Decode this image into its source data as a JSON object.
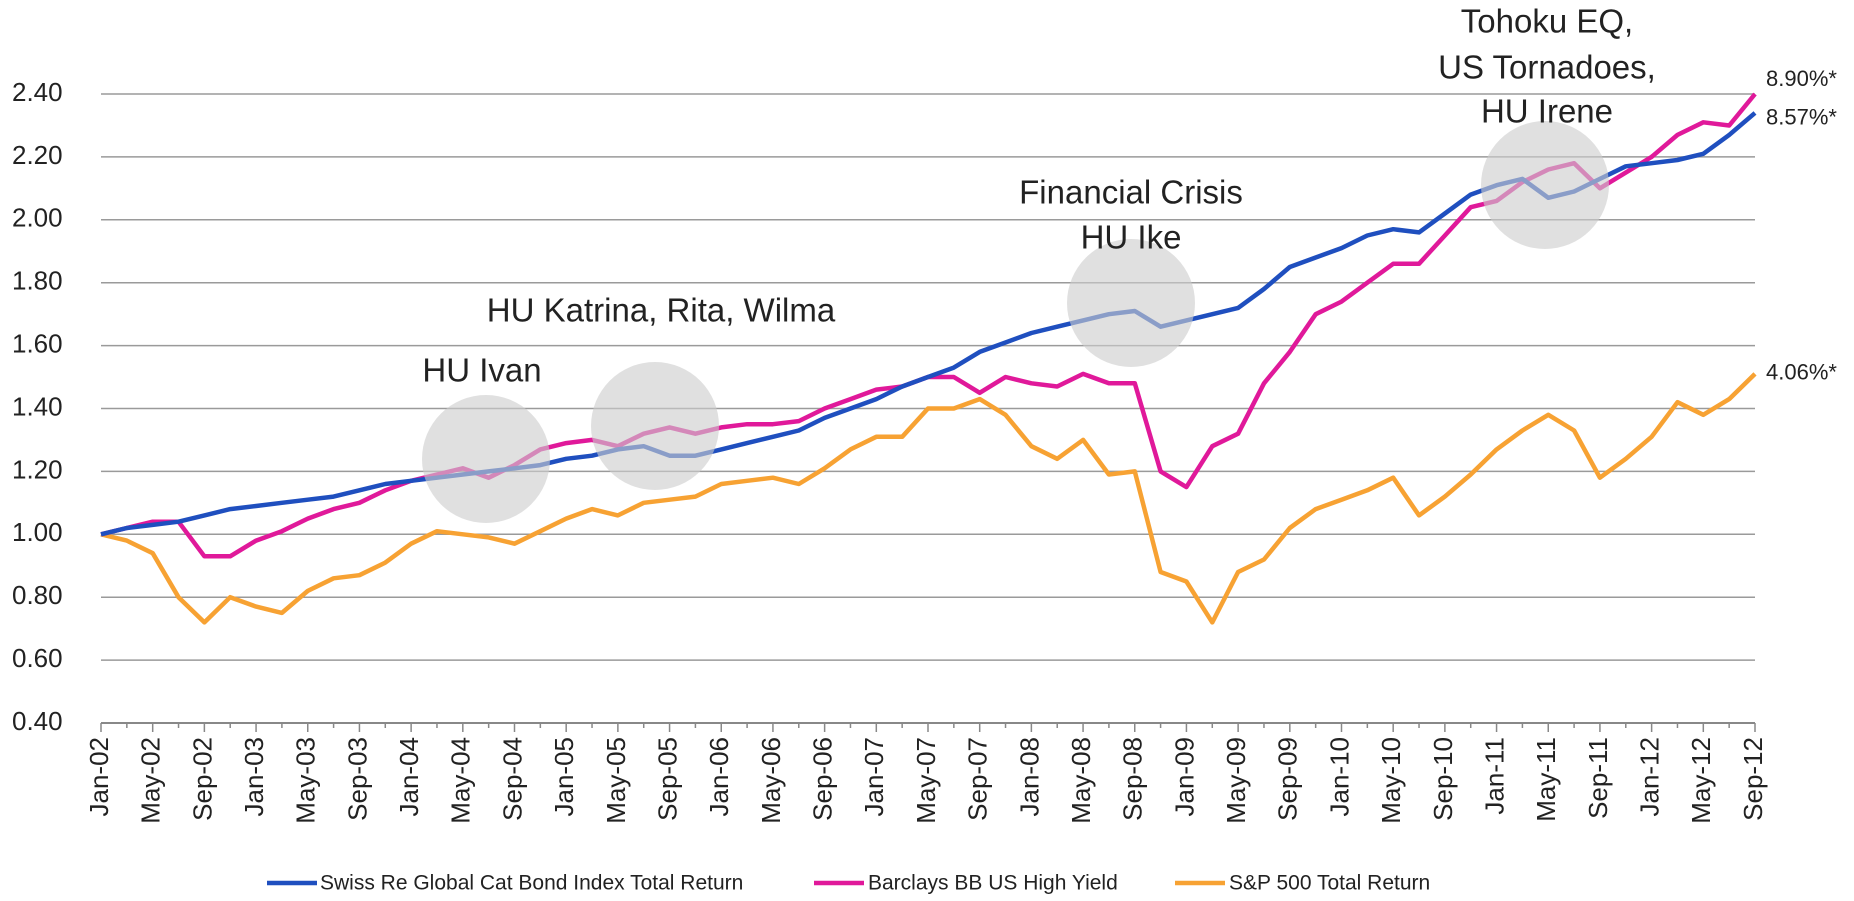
{
  "chart_data": {
    "type": "line",
    "categories": [
      "Jan-02",
      null,
      "May-02",
      null,
      "Sep-02",
      null,
      "Jan-03",
      null,
      "May-03",
      null,
      "Sep-03",
      null,
      "Jan-04",
      null,
      "May-04",
      null,
      "Sep-04",
      null,
      "Jan-05",
      null,
      "May-05",
      null,
      "Sep-05",
      null,
      "Jan-06",
      null,
      "May-06",
      null,
      "Sep-06",
      null,
      "Jan-07",
      null,
      "May-07",
      null,
      "Sep-07",
      null,
      "Jan-08",
      null,
      "May-08",
      null,
      "Sep-08",
      null,
      "Jan-09",
      null,
      "May-09",
      null,
      "Sep-09",
      null,
      "Jan-10",
      null,
      "May-10",
      null,
      "Sep-10",
      null,
      "Jan-11",
      null,
      "May-11",
      null,
      "Sep-11",
      null,
      "Jan-12",
      null,
      "May-12",
      null,
      "Sep-12"
    ],
    "series": [
      {
        "name": "Swiss Re Global Cat Bond Index Total Return",
        "color": "#1f4fbf",
        "label": "8.57%*",
        "values": [
          1.0,
          1.02,
          1.03,
          1.04,
          1.06,
          1.08,
          1.09,
          1.1,
          1.11,
          1.12,
          1.14,
          1.16,
          1.17,
          1.18,
          1.19,
          1.2,
          1.21,
          1.22,
          1.24,
          1.25,
          1.27,
          1.28,
          1.25,
          1.25,
          1.27,
          1.29,
          1.31,
          1.33,
          1.37,
          1.4,
          1.43,
          1.47,
          1.5,
          1.53,
          1.58,
          1.61,
          1.64,
          1.66,
          1.68,
          1.7,
          1.71,
          1.66,
          1.68,
          1.7,
          1.72,
          1.78,
          1.85,
          1.88,
          1.91,
          1.95,
          1.97,
          1.96,
          2.02,
          2.08,
          2.11,
          2.13,
          2.07,
          2.09,
          2.13,
          2.17,
          2.18,
          2.19,
          2.21,
          2.27,
          2.34
        ]
      },
      {
        "name": "Barclays BB US High Yield",
        "color": "#e0199a",
        "label": "8.90%*",
        "values": [
          1.0,
          1.02,
          1.04,
          1.04,
          0.93,
          0.93,
          0.98,
          1.01,
          1.05,
          1.08,
          1.1,
          1.14,
          1.17,
          1.19,
          1.21,
          1.18,
          1.22,
          1.27,
          1.29,
          1.3,
          1.28,
          1.32,
          1.34,
          1.32,
          1.34,
          1.35,
          1.35,
          1.36,
          1.4,
          1.43,
          1.46,
          1.47,
          1.5,
          1.5,
          1.45,
          1.5,
          1.48,
          1.47,
          1.51,
          1.48,
          1.48,
          1.2,
          1.15,
          1.28,
          1.32,
          1.48,
          1.58,
          1.7,
          1.74,
          1.8,
          1.86,
          1.86,
          1.95,
          2.04,
          2.06,
          2.12,
          2.16,
          2.18,
          2.1,
          2.15,
          2.2,
          2.27,
          2.31,
          2.3,
          2.4
        ]
      },
      {
        "name": "S&P 500 Total Return",
        "color": "#f7a233",
        "label": "4.06%*",
        "values": [
          1.0,
          0.98,
          0.94,
          0.8,
          0.72,
          0.8,
          0.77,
          0.75,
          0.82,
          0.86,
          0.87,
          0.91,
          0.97,
          1.01,
          1.0,
          0.99,
          0.97,
          1.01,
          1.05,
          1.08,
          1.06,
          1.1,
          1.11,
          1.12,
          1.16,
          1.17,
          1.18,
          1.16,
          1.21,
          1.27,
          1.31,
          1.31,
          1.4,
          1.4,
          1.43,
          1.38,
          1.28,
          1.24,
          1.3,
          1.19,
          1.2,
          0.88,
          0.85,
          0.72,
          0.88,
          0.92,
          1.02,
          1.08,
          1.11,
          1.14,
          1.18,
          1.06,
          1.12,
          1.19,
          1.27,
          1.33,
          1.38,
          1.33,
          1.18,
          1.24,
          1.31,
          1.42,
          1.38,
          1.43,
          1.51
        ]
      }
    ],
    "ylim": [
      0.4,
      2.4
    ],
    "yticks": [
      {
        "value": 0.4,
        "label": "0.40"
      },
      {
        "value": 0.6,
        "label": "0.60"
      },
      {
        "value": 0.8,
        "label": "0.80"
      },
      {
        "value": 1,
        "label": "1.00"
      },
      {
        "value": 1.2,
        "label": "1.20"
      },
      {
        "value": 1.4,
        "label": "1.40"
      },
      {
        "value": 1.6,
        "label": "1.60"
      },
      {
        "value": 1.8,
        "label": "1.80"
      },
      {
        "value": 2,
        "label": "2.00"
      },
      {
        "value": 2.2,
        "label": "2.20"
      },
      {
        "value": 2.4,
        "label": "2.40"
      }
    ],
    "grid": true,
    "annotations": [
      {
        "text": [
          "HU Ivan"
        ]
      },
      {
        "text": [
          "HU Katrina, Rita, Wilma"
        ]
      },
      {
        "text": [
          "Financial Crisis",
          "HU Ike"
        ]
      },
      {
        "text": [
          "Tohoku EQ,",
          "US Tornadoes,",
          "HU Irene"
        ]
      }
    ]
  }
}
